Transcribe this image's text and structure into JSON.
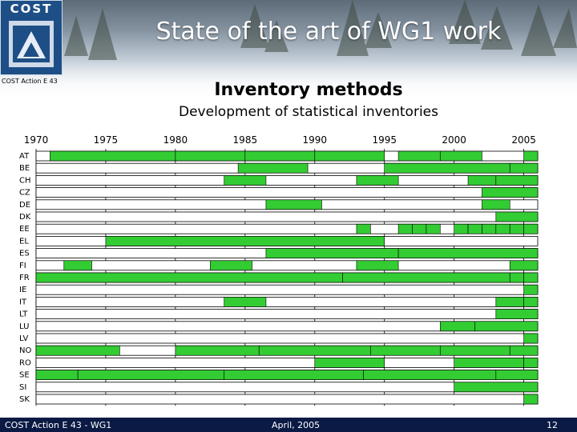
{
  "header": {
    "logo_text": "COST",
    "action_label": "COST Action E 43",
    "title": "State of the art of WG1 work"
  },
  "slide": {
    "subtitle": "Inventory methods",
    "subtitle2": "Development of statistical inventories"
  },
  "footer": {
    "left": "COST Action E 43 - WG1",
    "center": "April, 2005",
    "page": "12"
  },
  "colors": {
    "bar": "#33cc33",
    "grid": "#000000",
    "footer_bg": "#0b1a44"
  },
  "chart_data": {
    "type": "gantt",
    "title": "Development of statistical inventories",
    "x_ticks": [
      "1970",
      "1975",
      "1980",
      "1985",
      "1990",
      "1995",
      "2000",
      "2005"
    ],
    "xlim": [
      1970,
      2006
    ],
    "rows": [
      {
        "label": "AT",
        "bars": [
          [
            1971,
            1980
          ],
          [
            1980,
            1985
          ],
          [
            1985,
            1990
          ],
          [
            1990,
            1995
          ],
          [
            1996,
            1999
          ],
          [
            1999,
            2002
          ],
          [
            2005,
            2006
          ]
        ]
      },
      {
        "label": "BE",
        "bars": [
          [
            1984.5,
            1989.5
          ],
          [
            1995,
            2004
          ],
          [
            2004,
            2006
          ]
        ]
      },
      {
        "label": "CH",
        "bars": [
          [
            1983.5,
            1986.5
          ],
          [
            1993,
            1996
          ],
          [
            2001,
            2003
          ],
          [
            2003,
            2006
          ]
        ]
      },
      {
        "label": "CZ",
        "bars": [
          [
            2002,
            2006
          ]
        ]
      },
      {
        "label": "DE",
        "bars": [
          [
            1986.5,
            1990.5
          ],
          [
            2002,
            2004
          ]
        ]
      },
      {
        "label": "DK",
        "bars": [
          [
            2003,
            2006
          ]
        ]
      },
      {
        "label": "EE",
        "bars": [
          [
            1993,
            1994
          ],
          [
            1996,
            1997
          ],
          [
            1997,
            1998
          ],
          [
            1998,
            1999
          ],
          [
            2000,
            2001
          ],
          [
            2001,
            2002
          ],
          [
            2002,
            2003
          ],
          [
            2003,
            2004
          ],
          [
            2004,
            2005
          ],
          [
            2005,
            2006
          ]
        ]
      },
      {
        "label": "EL",
        "bars": [
          [
            1975,
            1995
          ]
        ]
      },
      {
        "label": "ES",
        "bars": [
          [
            1986.5,
            1996
          ],
          [
            1996,
            2006
          ]
        ]
      },
      {
        "label": "FI",
        "bars": [
          [
            1972,
            1974
          ],
          [
            1982.5,
            1985.5
          ],
          [
            1993,
            1996
          ],
          [
            2004,
            2006
          ]
        ]
      },
      {
        "label": "FR",
        "bars": [
          [
            1970,
            1992
          ],
          [
            1992,
            2004
          ],
          [
            2004,
            2005
          ],
          [
            2005,
            2006
          ]
        ]
      },
      {
        "label": "IE",
        "bars": [
          [
            2005,
            2006
          ]
        ]
      },
      {
        "label": "IT",
        "bars": [
          [
            1983.5,
            1986.5
          ],
          [
            2003,
            2005
          ],
          [
            2005,
            2006
          ]
        ]
      },
      {
        "label": "LT",
        "bars": [
          [
            2003,
            2006
          ]
        ]
      },
      {
        "label": "LU",
        "bars": [
          [
            1999,
            2001.5
          ],
          [
            2001.5,
            2006
          ]
        ]
      },
      {
        "label": "LV",
        "bars": [
          [
            2005,
            2006
          ]
        ]
      },
      {
        "label": "NO",
        "bars": [
          [
            1970,
            1976
          ],
          [
            1980,
            1986
          ],
          [
            1986,
            1994
          ],
          [
            1994,
            1999
          ],
          [
            1999,
            2004
          ],
          [
            2004,
            2006
          ]
        ]
      },
      {
        "label": "RO",
        "bars": [
          [
            1990,
            1995
          ],
          [
            2000,
            2005
          ],
          [
            2005,
            2006
          ]
        ]
      },
      {
        "label": "SE",
        "bars": [
          [
            1970,
            1973
          ],
          [
            1973,
            1983.5
          ],
          [
            1983.5,
            1993.5
          ],
          [
            1993.5,
            2003
          ],
          [
            2003,
            2006
          ]
        ]
      },
      {
        "label": "SI",
        "bars": [
          [
            2000,
            2006
          ]
        ]
      },
      {
        "label": "SK",
        "bars": [
          [
            2005,
            2006
          ]
        ]
      }
    ]
  }
}
